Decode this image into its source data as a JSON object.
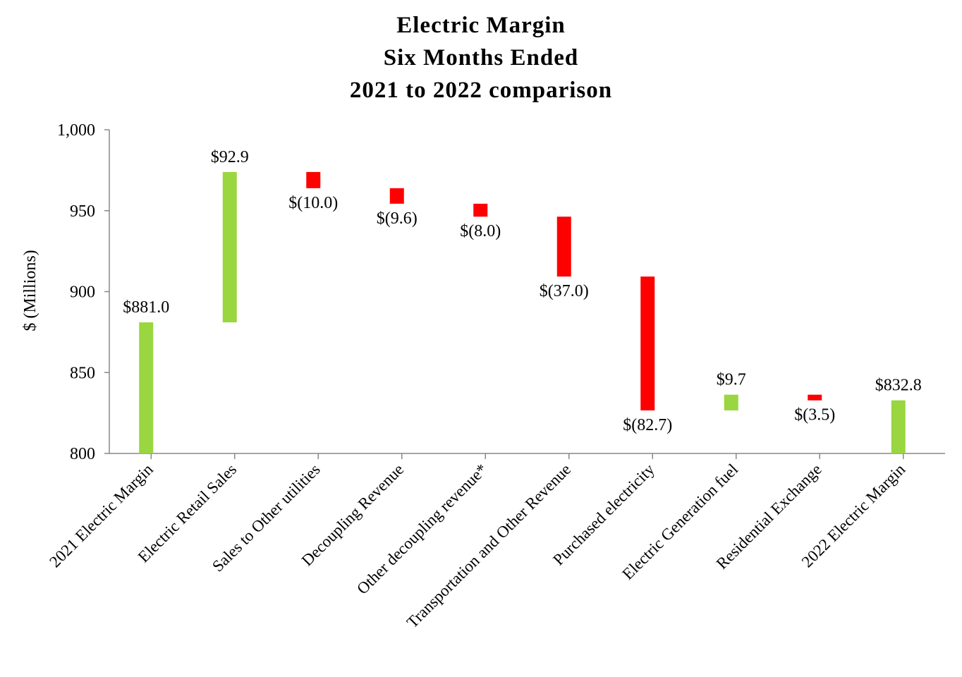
{
  "chart_data": {
    "type": "bar",
    "subtype": "waterfall",
    "title_lines": [
      "Electric Margin",
      "Six Months Ended",
      "2021 to 2022 comparison"
    ],
    "ylabel": "$ (Millions)",
    "xlabel": "",
    "ylim": [
      800,
      1000
    ],
    "yticks": [
      800,
      850,
      900,
      950,
      1000
    ],
    "ytick_labels": [
      "800",
      "850",
      "900",
      "950",
      "1,000"
    ],
    "grid": false,
    "legend": "none",
    "colors": {
      "increase": "#99d63f",
      "decrease": "#ff0000",
      "total": "#99d63f"
    },
    "categories": [
      "2021 Electric Margin",
      "Electric Retail Sales",
      "Sales to Other utilities",
      "Decoupling Revenue",
      "Other decoupling revenue*",
      "Transportation and Other Revenue",
      "Purchased electricity",
      "Electric Generation fuel",
      "Residential Exchange",
      "2022 Electric Margin"
    ],
    "values": [
      881.0,
      92.9,
      -10.0,
      -9.6,
      -8.0,
      -37.0,
      -82.7,
      9.7,
      -3.5,
      832.8
    ],
    "kinds": [
      "total",
      "increase",
      "decrease",
      "decrease",
      "decrease",
      "decrease",
      "decrease",
      "increase",
      "decrease",
      "total"
    ],
    "data_labels": [
      "$881.0",
      "$92.9",
      "$(10.0)",
      "$(9.6)",
      "$(8.0)",
      "$(37.0)",
      "$(82.7)",
      "$9.7",
      "$(3.5)",
      "$832.8"
    ]
  }
}
